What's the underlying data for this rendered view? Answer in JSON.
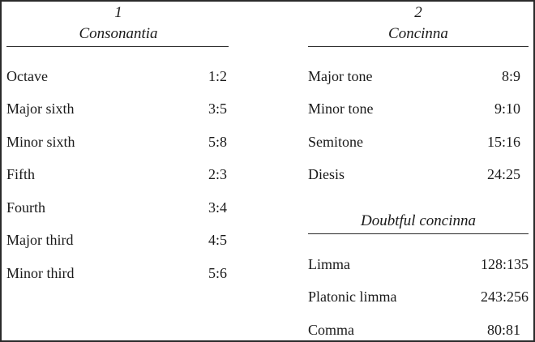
{
  "column1": {
    "number": "1",
    "title": "Consonantia",
    "rows": [
      {
        "name": "Octave",
        "ratio": "1:2"
      },
      {
        "name": "Major sixth",
        "ratio": "3:5"
      },
      {
        "name": "Minor sixth",
        "ratio": "5:8"
      },
      {
        "name": "Fifth",
        "ratio": "2:3"
      },
      {
        "name": "Fourth",
        "ratio": "3:4"
      },
      {
        "name": "Major third",
        "ratio": "4:5"
      },
      {
        "name": "Minor third",
        "ratio": "5:6"
      }
    ]
  },
  "column2": {
    "number": "2",
    "title": "Concinna",
    "rows": [
      {
        "name": "Major tone",
        "ratio": "8:9"
      },
      {
        "name": "Minor tone",
        "ratio": "9:10"
      },
      {
        "name": "Semitone",
        "ratio": "15:16"
      },
      {
        "name": "Diesis",
        "ratio": "24:25"
      }
    ],
    "subtitle": "Doubtful concinna",
    "subrows": [
      {
        "name": "Limma",
        "ratio": "128:135"
      },
      {
        "name": "Platonic limma",
        "ratio": "243:256"
      },
      {
        "name": "Comma",
        "ratio": "80:81"
      }
    ]
  }
}
